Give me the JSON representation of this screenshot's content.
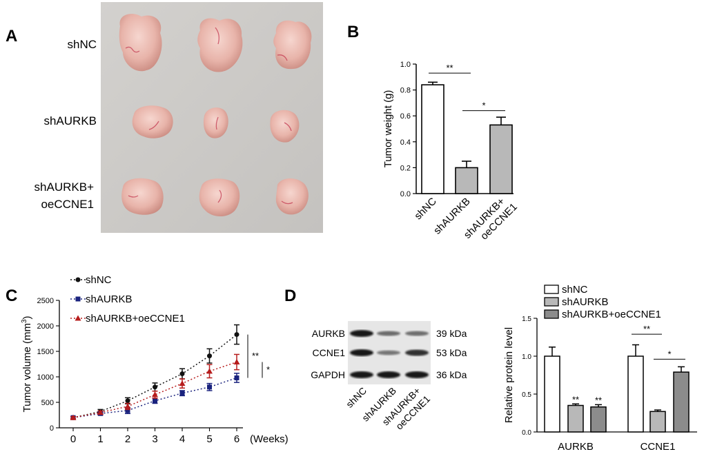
{
  "panels": {
    "a": {
      "letter": "A",
      "groups": [
        "shNC",
        "shAURKB",
        "shAURKB+",
        "oeCCNE1"
      ]
    },
    "b": {
      "letter": "B"
    },
    "c": {
      "letter": "C"
    },
    "d": {
      "letter": "D",
      "blot": {
        "bands": [
          {
            "name": "AURKB",
            "kda": "39 kDa"
          },
          {
            "name": "CCNE1",
            "kda": "53 kDa"
          },
          {
            "name": "GAPDH",
            "kda": "36 kDa"
          }
        ],
        "lanes": [
          "shNC",
          "shAURKB",
          "shAURKB+",
          "oeCCNE1"
        ],
        "intensities": {
          "AURKB": [
            1.0,
            0.36,
            0.34
          ],
          "CCNE1": [
            1.0,
            0.28,
            0.8
          ],
          "GAPDH": [
            1.0,
            1.0,
            1.0
          ]
        }
      }
    }
  },
  "colors": {
    "black": "#111111",
    "white_bar": "#ffffff",
    "light_gray": "#b8b8b8",
    "mid_gray": "#8c8c8c",
    "navy": "#1a237e",
    "red": "#b71c1c",
    "photo_bg": "#cfcdca",
    "tumor": "#e8b4aa"
  },
  "chart_data": [
    {
      "id": "B",
      "type": "bar",
      "categories": [
        "shNC",
        "shAURKB",
        "shAURKB+\noeCCNE1"
      ],
      "category_lines": [
        [
          "shNC"
        ],
        [
          "shAURKB"
        ],
        [
          "shAURKB+",
          "oeCCNE1"
        ]
      ],
      "values": [
        0.84,
        0.2,
        0.53
      ],
      "errors": [
        0.02,
        0.05,
        0.06
      ],
      "fills": [
        "#ffffff",
        "#b8b8b8",
        "#b8b8b8"
      ],
      "ylabel": "Tumor weight (g)",
      "ylim": [
        0,
        1.0
      ],
      "yticks": [
        0.0,
        0.2,
        0.4,
        0.6,
        0.8,
        1.0
      ],
      "ytick_labels": [
        "0.0",
        "0.2",
        "0.4",
        "0.6",
        "0.8",
        "1.0"
      ],
      "significance": [
        {
          "from": 0,
          "to": 1,
          "label": "**",
          "y": 0.93
        },
        {
          "from": 1,
          "to": 2,
          "label": "*",
          "y": 0.64
        }
      ]
    },
    {
      "id": "C",
      "type": "line",
      "x": [
        0,
        1,
        2,
        3,
        4,
        5,
        6
      ],
      "xlabel": "(Weeks)",
      "ylabel": "Tumor volume (mm³)",
      "ylabel_main": "Tumor volume (mm",
      "ylabel_sup": "3",
      "ylabel_end": ")",
      "ylim": [
        0,
        2500
      ],
      "yticks": [
        0,
        500,
        1000,
        1500,
        2000,
        2500
      ],
      "series": [
        {
          "name": "shNC",
          "color": "#111111",
          "marker": "circle",
          "values": [
            200,
            320,
            530,
            800,
            1060,
            1410,
            1830
          ],
          "errors": [
            20,
            40,
            60,
            80,
            100,
            140,
            190
          ]
        },
        {
          "name": "shAURKB",
          "color": "#1a237e",
          "marker": "square",
          "values": [
            200,
            280,
            340,
            530,
            680,
            800,
            980
          ],
          "errors": [
            20,
            30,
            60,
            50,
            50,
            70,
            90
          ]
        },
        {
          "name": "shAURKB+oeCCNE1",
          "color": "#b71c1c",
          "marker": "triangle",
          "values": [
            200,
            300,
            420,
            650,
            870,
            1110,
            1290
          ],
          "errors": [
            20,
            30,
            60,
            70,
            90,
            130,
            150
          ]
        }
      ],
      "significance": [
        {
          "label": "**",
          "from_y": 1830,
          "to_y": 980
        },
        {
          "label": "*",
          "from_y": 1290,
          "to_y": 980
        }
      ]
    },
    {
      "id": "D-quant",
      "type": "bar",
      "groups": [
        "AURKB",
        "CCNE1"
      ],
      "ylabel": "Relative protein level",
      "ylim": [
        0,
        1.5
      ],
      "yticks": [
        0.0,
        0.5,
        1.0,
        1.5
      ],
      "ytick_labels": [
        "0.0",
        "0.5",
        "1.0",
        "1.5"
      ],
      "series": [
        {
          "name": "shNC",
          "fill": "#ffffff",
          "values": [
            1.0,
            1.0
          ],
          "errors": [
            0.12,
            0.15
          ]
        },
        {
          "name": "shAURKB",
          "fill": "#b8b8b8",
          "values": [
            0.35,
            0.27
          ],
          "errors": [
            0.02,
            0.02
          ]
        },
        {
          "name": "shAURKB+oeCCNE1",
          "fill": "#8c8c8c",
          "values": [
            0.33,
            0.79
          ],
          "errors": [
            0.03,
            0.07
          ]
        }
      ],
      "bar_stars": [
        {
          "group": 0,
          "series": 1,
          "label": "**"
        },
        {
          "group": 0,
          "series": 2,
          "label": "**"
        }
      ],
      "brackets": [
        {
          "group": 1,
          "from": 0,
          "to": 1,
          "label": "**",
          "y": 1.29
        },
        {
          "group": 1,
          "from": 1,
          "to": 2,
          "label": "*",
          "y": 0.96
        }
      ]
    }
  ]
}
